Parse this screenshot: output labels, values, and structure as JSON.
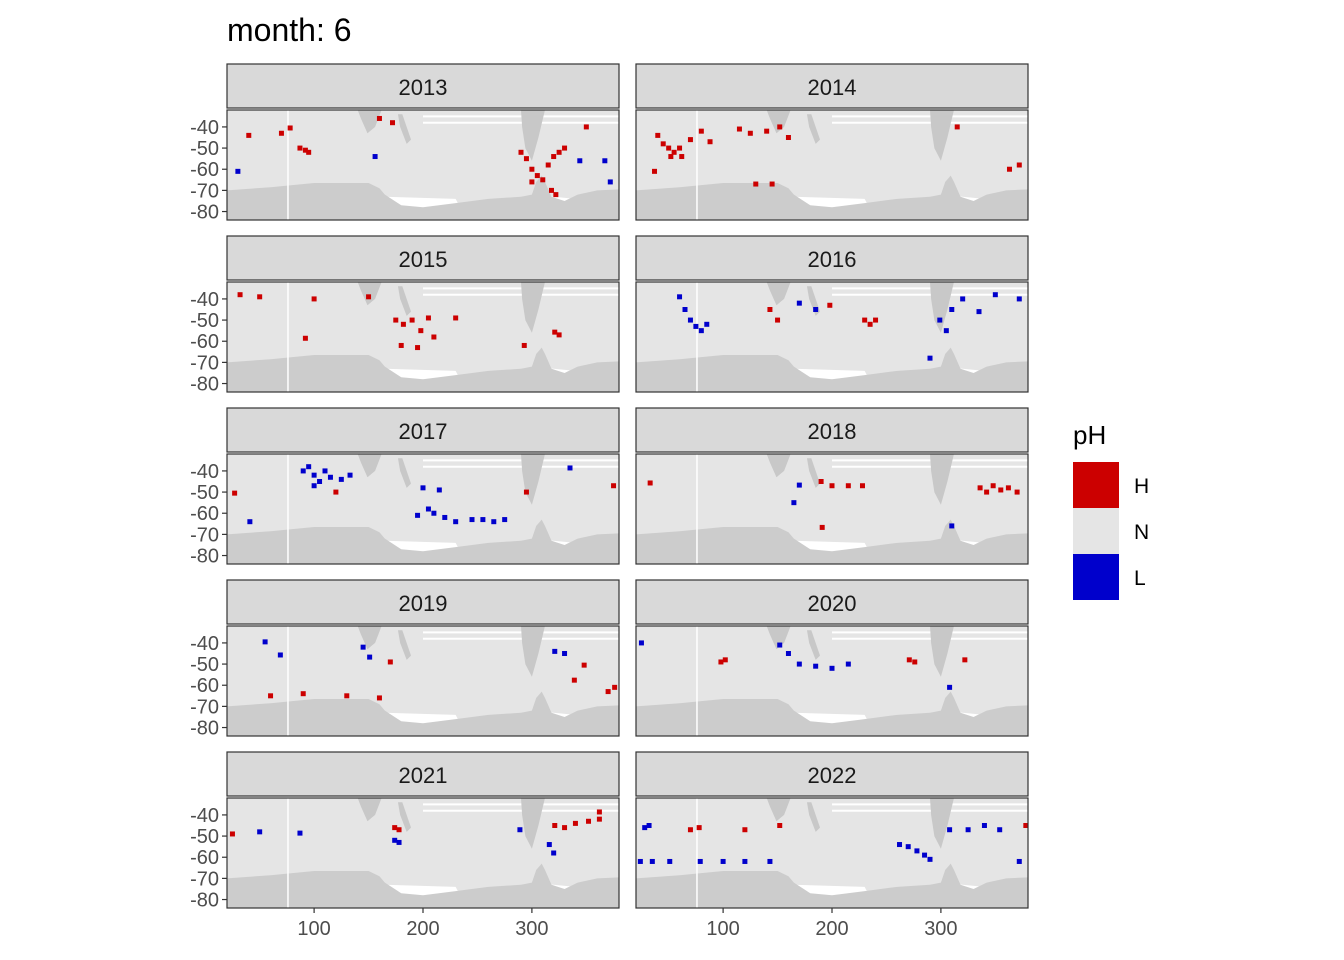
{
  "chart_data": {
    "type": "heatmap",
    "title": "month: 6",
    "xlabel": "",
    "ylabel": "",
    "xlim": [
      20,
      380
    ],
    "ylim": [
      -84,
      -32
    ],
    "x_ticks": [
      100,
      200,
      300
    ],
    "y_ticks": [
      -40,
      -50,
      -60,
      -70,
      -80
    ],
    "legend": {
      "title": "pH",
      "position": "right",
      "entries": [
        {
          "label": "H",
          "color": "#cc0000"
        },
        {
          "label": "N",
          "color": "#e5e5e5"
        },
        {
          "label": "L",
          "color": "#0000cc"
        }
      ]
    },
    "facets": [
      {
        "label": "2013",
        "points": [
          [
            78,
            -40.5,
            "H"
          ],
          [
            87,
            -50,
            "H"
          ],
          [
            92,
            -51,
            "H"
          ],
          [
            95,
            -52,
            "H"
          ],
          [
            70,
            -43,
            "H"
          ],
          [
            40,
            -44,
            "H"
          ],
          [
            160,
            -36,
            "H"
          ],
          [
            172,
            -38,
            "H"
          ],
          [
            290,
            -52,
            "H"
          ],
          [
            295,
            -55,
            "H"
          ],
          [
            300,
            -60,
            "H"
          ],
          [
            305,
            -63,
            "H"
          ],
          [
            310,
            -65,
            "H"
          ],
          [
            315,
            -58,
            "H"
          ],
          [
            320,
            -54,
            "H"
          ],
          [
            325,
            -52,
            "H"
          ],
          [
            330,
            -50,
            "H"
          ],
          [
            318,
            -70,
            "H"
          ],
          [
            322,
            -72,
            "H"
          ],
          [
            300,
            -66,
            "H"
          ],
          [
            350,
            -40,
            "H"
          ],
          [
            156,
            -54,
            "L"
          ],
          [
            344,
            -56,
            "L"
          ],
          [
            367,
            -56,
            "L"
          ],
          [
            372,
            -66,
            "L"
          ],
          [
            30,
            -61,
            "L"
          ]
        ]
      },
      {
        "label": "2014",
        "points": [
          [
            45,
            -48,
            "H"
          ],
          [
            50,
            -50,
            "H"
          ],
          [
            55,
            -52,
            "H"
          ],
          [
            60,
            -50,
            "H"
          ],
          [
            52,
            -54,
            "H"
          ],
          [
            62,
            -54,
            "H"
          ],
          [
            40,
            -44,
            "H"
          ],
          [
            70,
            -46,
            "H"
          ],
          [
            80,
            -42,
            "H"
          ],
          [
            88,
            -47,
            "H"
          ],
          [
            37,
            -61,
            "H"
          ],
          [
            115,
            -41,
            "H"
          ],
          [
            125,
            -43,
            "H"
          ],
          [
            140,
            -42,
            "H"
          ],
          [
            152,
            -40,
            "H"
          ],
          [
            160,
            -45,
            "H"
          ],
          [
            372,
            -58,
            "H"
          ],
          [
            363,
            -60,
            "H"
          ],
          [
            315,
            -40,
            "H"
          ],
          [
            130,
            -67,
            "H"
          ],
          [
            145,
            -67,
            "H"
          ]
        ]
      },
      {
        "label": "2015",
        "points": [
          [
            175,
            -50,
            "H"
          ],
          [
            182,
            -52,
            "H"
          ],
          [
            190,
            -50,
            "H"
          ],
          [
            198,
            -55,
            "H"
          ],
          [
            205,
            -49,
            "H"
          ],
          [
            180,
            -62,
            "H"
          ],
          [
            195,
            -63,
            "H"
          ],
          [
            210,
            -58,
            "H"
          ],
          [
            92,
            -58.6,
            "H"
          ],
          [
            321,
            -55.7,
            "H"
          ],
          [
            325,
            -57,
            "H"
          ],
          [
            293,
            -62,
            "H"
          ],
          [
            32,
            -38,
            "H"
          ],
          [
            50,
            -39,
            "H"
          ],
          [
            100,
            -40,
            "H"
          ],
          [
            150,
            -39,
            "H"
          ],
          [
            230,
            -49,
            "H"
          ]
        ]
      },
      {
        "label": "2016",
        "points": [
          [
            70,
            -50,
            "L"
          ],
          [
            75,
            -53,
            "L"
          ],
          [
            80,
            -55,
            "L"
          ],
          [
            85,
            -52,
            "L"
          ],
          [
            60,
            -39,
            "L"
          ],
          [
            65,
            -45,
            "L"
          ],
          [
            230,
            -50,
            "H"
          ],
          [
            235,
            -52,
            "H"
          ],
          [
            240,
            -50,
            "H"
          ],
          [
            198,
            -43,
            "H"
          ],
          [
            143,
            -45,
            "H"
          ],
          [
            150,
            -50,
            "H"
          ],
          [
            170,
            -42,
            "L"
          ],
          [
            185,
            -45,
            "L"
          ],
          [
            299,
            -50,
            "L"
          ],
          [
            310,
            -45,
            "L"
          ],
          [
            320,
            -40,
            "L"
          ],
          [
            335,
            -46,
            "L"
          ],
          [
            350,
            -38,
            "L"
          ],
          [
            372,
            -40,
            "L"
          ],
          [
            305,
            -55,
            "L"
          ],
          [
            290,
            -68,
            "L"
          ]
        ]
      },
      {
        "label": "2017",
        "points": [
          [
            90,
            -40,
            "L"
          ],
          [
            95,
            -38,
            "L"
          ],
          [
            100,
            -42,
            "L"
          ],
          [
            105,
            -45,
            "L"
          ],
          [
            110,
            -40,
            "L"
          ],
          [
            115,
            -43,
            "L"
          ],
          [
            125,
            -44,
            "L"
          ],
          [
            133,
            -42,
            "L"
          ],
          [
            100,
            -47,
            "L"
          ],
          [
            205,
            -58,
            "L"
          ],
          [
            210,
            -60,
            "L"
          ],
          [
            195,
            -61,
            "L"
          ],
          [
            220,
            -62,
            "L"
          ],
          [
            230,
            -64,
            "L"
          ],
          [
            245,
            -63,
            "L"
          ],
          [
            255,
            -63,
            "L"
          ],
          [
            265,
            -64,
            "L"
          ],
          [
            275,
            -63,
            "L"
          ],
          [
            215,
            -49,
            "L"
          ],
          [
            200,
            -48,
            "L"
          ],
          [
            335,
            -38.6,
            "L"
          ],
          [
            41,
            -64,
            "L"
          ],
          [
            27,
            -50.5,
            "H"
          ],
          [
            295,
            -50,
            "H"
          ],
          [
            375,
            -47,
            "H"
          ],
          [
            120,
            -50,
            "H"
          ]
        ]
      },
      {
        "label": "2018",
        "points": [
          [
            336,
            -48,
            "H"
          ],
          [
            342,
            -50,
            "H"
          ],
          [
            348,
            -47,
            "H"
          ],
          [
            355,
            -49,
            "H"
          ],
          [
            362,
            -48,
            "H"
          ],
          [
            370,
            -50,
            "H"
          ],
          [
            190,
            -45,
            "H"
          ],
          [
            200,
            -47,
            "H"
          ],
          [
            215,
            -47,
            "H"
          ],
          [
            228,
            -47,
            "H"
          ],
          [
            33,
            -45.7,
            "H"
          ],
          [
            191,
            -66.7,
            "H"
          ],
          [
            170,
            -46.7,
            "L"
          ],
          [
            310,
            -66,
            "L"
          ],
          [
            165,
            -55,
            "L"
          ]
        ]
      },
      {
        "label": "2019",
        "points": [
          [
            55,
            -39.5,
            "L"
          ],
          [
            69,
            -45.7,
            "L"
          ],
          [
            151,
            -46.7,
            "L"
          ],
          [
            145,
            -42,
            "L"
          ],
          [
            170,
            -49,
            "H"
          ],
          [
            321,
            -44,
            "L"
          ],
          [
            330,
            -45,
            "L"
          ],
          [
            348,
            -50.5,
            "H"
          ],
          [
            339,
            -57.6,
            "H"
          ],
          [
            60,
            -65,
            "H"
          ],
          [
            90,
            -64,
            "H"
          ],
          [
            130,
            -65,
            "H"
          ],
          [
            160,
            -66,
            "H"
          ],
          [
            376,
            -61,
            "H"
          ],
          [
            370,
            -63,
            "H"
          ]
        ]
      },
      {
        "label": "2020",
        "points": [
          [
            102,
            -48,
            "H"
          ],
          [
            98,
            -49,
            "H"
          ],
          [
            152,
            -41,
            "L"
          ],
          [
            160,
            -45,
            "L"
          ],
          [
            170,
            -50,
            "L"
          ],
          [
            185,
            -51,
            "L"
          ],
          [
            200,
            -52,
            "L"
          ],
          [
            215,
            -50,
            "L"
          ],
          [
            271,
            -48,
            "H"
          ],
          [
            276,
            -49,
            "H"
          ],
          [
            322,
            -48,
            "H"
          ],
          [
            308,
            -61,
            "L"
          ],
          [
            25,
            -40,
            "L"
          ]
        ]
      },
      {
        "label": "2021",
        "points": [
          [
            174,
            -46,
            "H"
          ],
          [
            178,
            -47,
            "H"
          ],
          [
            174,
            -52,
            "L"
          ],
          [
            178,
            -53,
            "L"
          ],
          [
            321,
            -45,
            "H"
          ],
          [
            330,
            -46,
            "H"
          ],
          [
            340,
            -44,
            "H"
          ],
          [
            352,
            -43,
            "H"
          ],
          [
            362,
            -42,
            "H"
          ],
          [
            362,
            -38.6,
            "H"
          ],
          [
            316,
            -54,
            "L"
          ],
          [
            320,
            -58,
            "L"
          ],
          [
            289,
            -47,
            "L"
          ],
          [
            50,
            -48,
            "L"
          ],
          [
            87,
            -48.6,
            "L"
          ],
          [
            25,
            -49,
            "H"
          ]
        ]
      },
      {
        "label": "2022",
        "points": [
          [
            28,
            -46,
            "L"
          ],
          [
            32,
            -45,
            "L"
          ],
          [
            24,
            -62,
            "L"
          ],
          [
            35,
            -62,
            "L"
          ],
          [
            51,
            -62,
            "L"
          ],
          [
            79,
            -62,
            "L"
          ],
          [
            100,
            -62,
            "L"
          ],
          [
            120,
            -62,
            "L"
          ],
          [
            143,
            -62,
            "L"
          ],
          [
            262,
            -54,
            "L"
          ],
          [
            270,
            -55,
            "L"
          ],
          [
            278,
            -57,
            "L"
          ],
          [
            285,
            -59,
            "L"
          ],
          [
            290,
            -61,
            "L"
          ],
          [
            308,
            -47,
            "L"
          ],
          [
            325,
            -47,
            "L"
          ],
          [
            340,
            -45,
            "L"
          ],
          [
            354,
            -47,
            "L"
          ],
          [
            372,
            -62,
            "L"
          ],
          [
            70,
            -47,
            "H"
          ],
          [
            78,
            -46,
            "H"
          ],
          [
            152,
            -45,
            "H"
          ],
          [
            120,
            -47,
            "H"
          ],
          [
            378,
            -45,
            "H"
          ]
        ]
      }
    ]
  }
}
